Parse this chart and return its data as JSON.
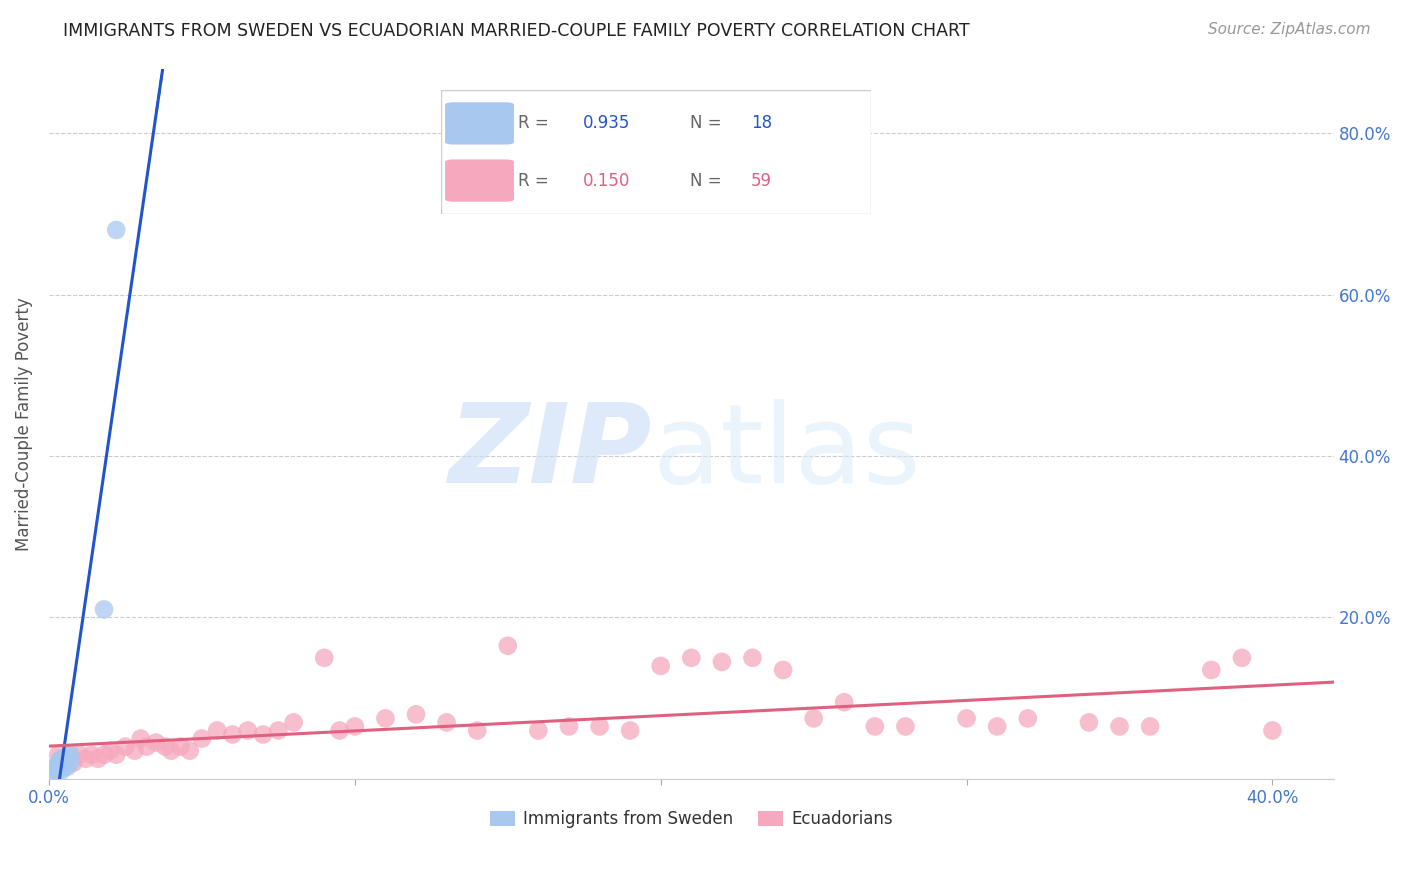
{
  "title": "IMMIGRANTS FROM SWEDEN VS ECUADORIAN MARRIED-COUPLE FAMILY POVERTY CORRELATION CHART",
  "source": "Source: ZipAtlas.com",
  "ylabel": "Married-Couple Family Poverty",
  "xlim": [
    0.0,
    0.42
  ],
  "ylim": [
    0.0,
    0.88
  ],
  "R_blue": 0.935,
  "N_blue": 18,
  "R_pink": 0.15,
  "N_pink": 59,
  "blue_color": "#a8c8f0",
  "blue_line_color": "#2255cc",
  "pink_color": "#f5a8be",
  "pink_line_color": "#e06080",
  "legend_label_blue": "Immigrants from Sweden",
  "legend_label_pink": "Ecuadorians",
  "sweden_x": [
    0.001,
    0.002,
    0.002,
    0.003,
    0.003,
    0.003,
    0.004,
    0.004,
    0.004,
    0.005,
    0.005,
    0.005,
    0.006,
    0.006,
    0.007,
    0.007,
    0.018,
    0.022
  ],
  "sweden_y": [
    0.01,
    0.01,
    0.015,
    0.01,
    0.015,
    0.02,
    0.01,
    0.02,
    0.025,
    0.015,
    0.02,
    0.025,
    0.015,
    0.025,
    0.02,
    0.03,
    0.21,
    0.68
  ],
  "ecuador_x": [
    0.003,
    0.004,
    0.005,
    0.006,
    0.007,
    0.008,
    0.01,
    0.012,
    0.014,
    0.016,
    0.018,
    0.02,
    0.022,
    0.025,
    0.028,
    0.03,
    0.032,
    0.035,
    0.038,
    0.04,
    0.043,
    0.046,
    0.05,
    0.055,
    0.06,
    0.065,
    0.07,
    0.075,
    0.08,
    0.09,
    0.095,
    0.1,
    0.11,
    0.12,
    0.13,
    0.14,
    0.15,
    0.16,
    0.17,
    0.18,
    0.19,
    0.2,
    0.21,
    0.22,
    0.23,
    0.24,
    0.25,
    0.26,
    0.27,
    0.28,
    0.3,
    0.31,
    0.32,
    0.34,
    0.35,
    0.36,
    0.38,
    0.39,
    0.4
  ],
  "ecuador_y": [
    0.03,
    0.025,
    0.02,
    0.025,
    0.03,
    0.02,
    0.03,
    0.025,
    0.03,
    0.025,
    0.03,
    0.035,
    0.03,
    0.04,
    0.035,
    0.05,
    0.04,
    0.045,
    0.04,
    0.035,
    0.04,
    0.035,
    0.05,
    0.06,
    0.055,
    0.06,
    0.055,
    0.06,
    0.07,
    0.15,
    0.06,
    0.065,
    0.075,
    0.08,
    0.07,
    0.06,
    0.165,
    0.06,
    0.065,
    0.065,
    0.06,
    0.14,
    0.15,
    0.145,
    0.15,
    0.135,
    0.075,
    0.095,
    0.065,
    0.065,
    0.075,
    0.065,
    0.075,
    0.07,
    0.065,
    0.065,
    0.135,
    0.15,
    0.06
  ]
}
